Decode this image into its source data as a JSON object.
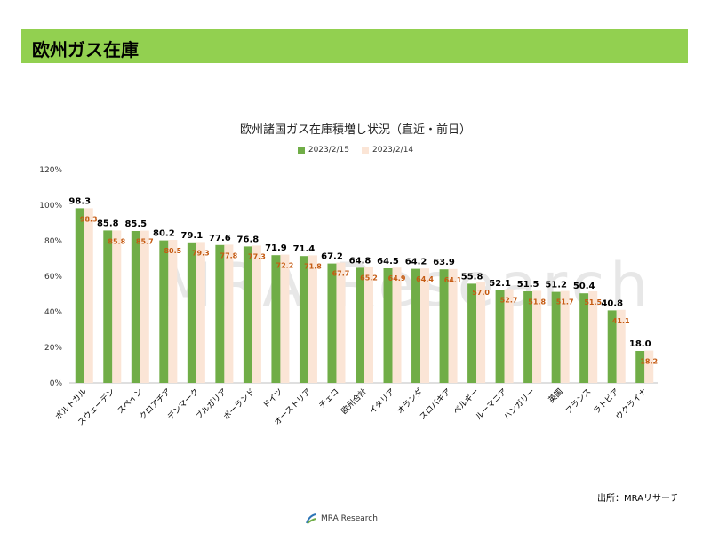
{
  "header": {
    "title": "欧州ガス在庫"
  },
  "source_label": "出所：MRAリサーチ",
  "footer": {
    "brand": "MRA Research"
  },
  "watermark": "MRA Research",
  "colors": {
    "series1": "#70ad47",
    "series2": "#fbe5d6",
    "header_bg": "#92d050",
    "label2": "#c55a11"
  },
  "chart_data": {
    "type": "bar",
    "title": "欧州諸国ガス在庫積増し状況（直近・前日）",
    "categories": [
      "ポルトガル",
      "スウェーデン",
      "スペイン",
      "クロアチア",
      "デンマーク",
      "ブルガリア",
      "ポーランド",
      "ドイツ",
      "オーストリア",
      "チェコ",
      "欧州合計",
      "イタリア",
      "オランダ",
      "スロバキア",
      "ベルギー",
      "ルーマニア",
      "ハンガリー",
      "英国",
      "フランス",
      "ラトビア",
      "ウクライナ"
    ],
    "series": [
      {
        "name": "2023/2/15",
        "values": [
          98.3,
          85.8,
          85.5,
          80.2,
          79.1,
          77.6,
          76.8,
          71.9,
          71.4,
          67.2,
          64.8,
          64.5,
          64.2,
          63.9,
          55.8,
          52.1,
          51.5,
          51.2,
          50.4,
          40.8,
          18.0
        ]
      },
      {
        "name": "2023/2/14",
        "values": [
          98.3,
          85.8,
          85.7,
          80.5,
          79.3,
          77.8,
          77.3,
          72.2,
          71.8,
          67.7,
          65.2,
          64.9,
          64.4,
          64.1,
          57.0,
          52.7,
          51.8,
          51.7,
          51.5,
          41.1,
          18.2
        ]
      }
    ],
    "yticks": [
      "0%",
      "20%",
      "40%",
      "60%",
      "80%",
      "100%",
      "120%"
    ],
    "ylim": [
      0,
      120
    ],
    "legend_position": "top",
    "grid": false
  }
}
